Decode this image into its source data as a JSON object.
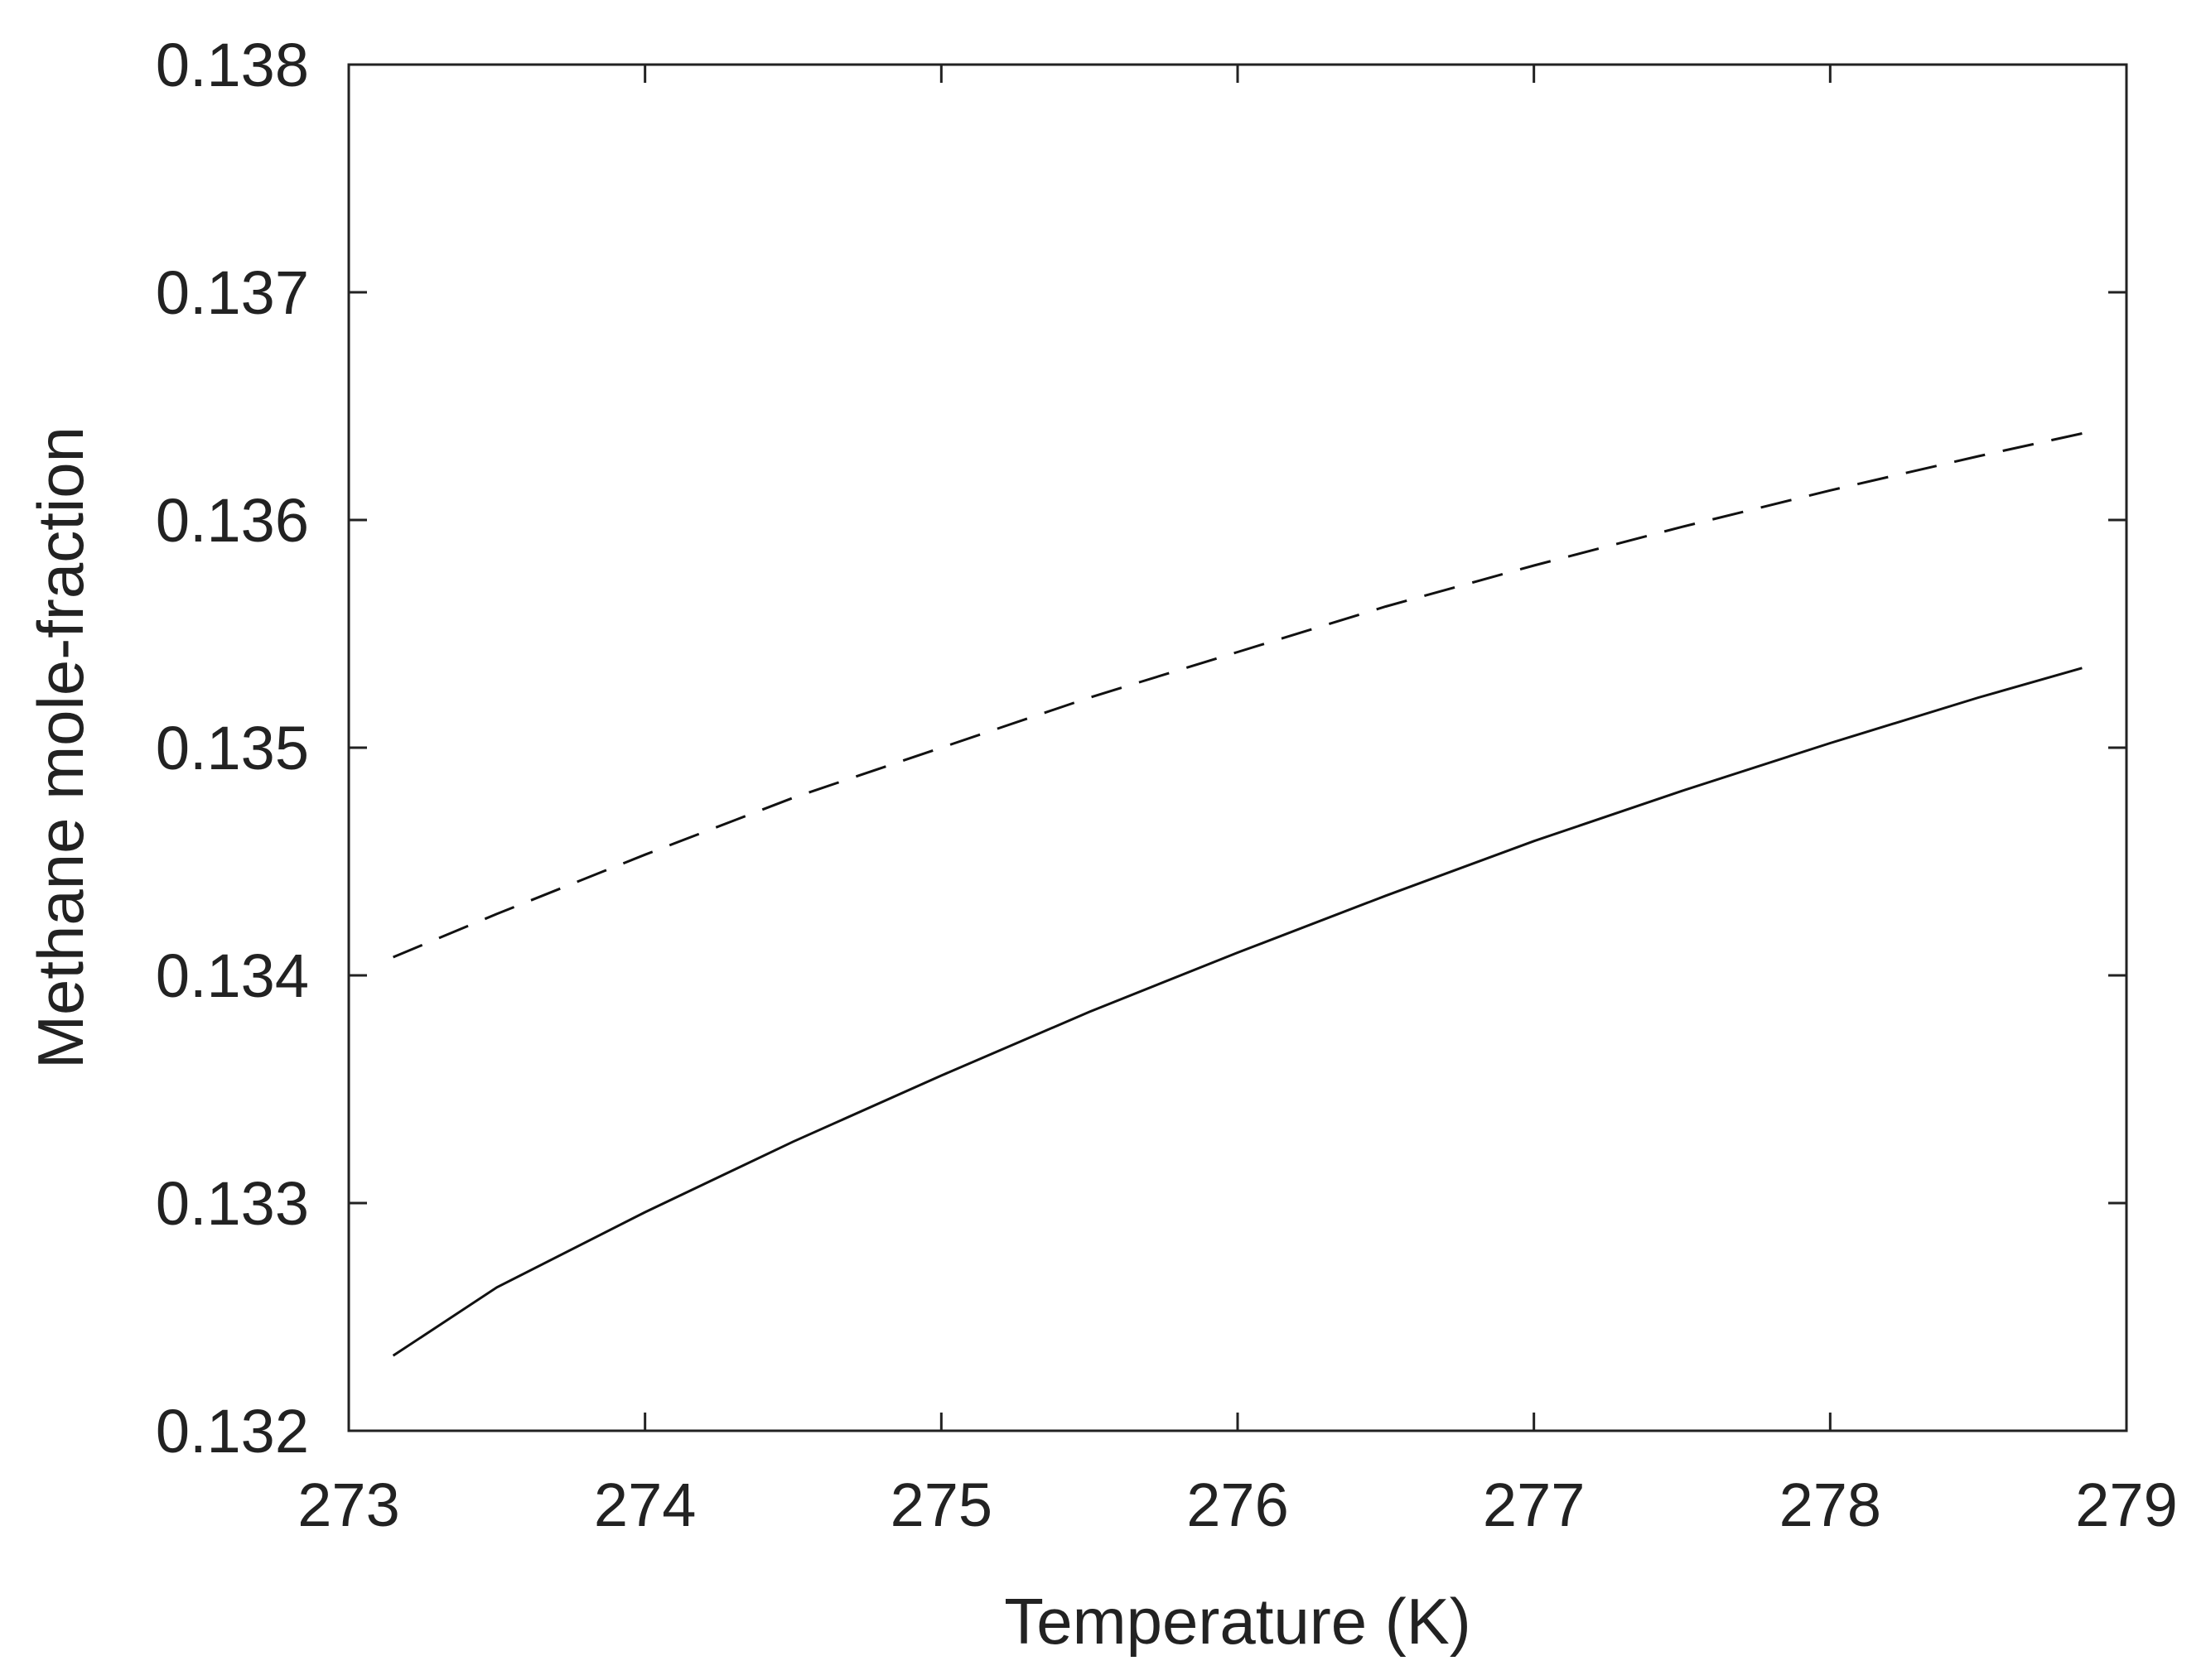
{
  "chart_data": {
    "type": "line",
    "title": "",
    "xlabel": "Temperature (K)",
    "ylabel": "Methane mole-fraction",
    "xlim": [
      273,
      279
    ],
    "ylim": [
      0.132,
      0.138
    ],
    "xticks": [
      "273",
      "274",
      "275",
      "276",
      "277",
      "278",
      "279"
    ],
    "yticks": [
      "0.132",
      "0.133",
      "0.134",
      "0.135",
      "0.136",
      "0.137",
      "0.138"
    ],
    "grid": false,
    "legend": "none",
    "series": [
      {
        "style": "solid",
        "color": "#111111",
        "x": [
          273.15,
          273.5,
          274.0,
          274.5,
          275.0,
          275.5,
          276.0,
          276.5,
          277.0,
          277.5,
          278.0,
          278.5,
          278.85
        ],
        "y": [
          0.13233,
          0.13263,
          0.13296,
          0.13327,
          0.13356,
          0.13384,
          0.1341,
          0.13435,
          0.13459,
          0.13481,
          0.13502,
          0.13522,
          0.13535
        ]
      },
      {
        "style": "dashed",
        "color": "#111111",
        "x": [
          273.15,
          273.5,
          274.0,
          274.5,
          275.0,
          275.5,
          276.0,
          276.5,
          277.0,
          277.5,
          278.0,
          278.5,
          278.85
        ],
        "y": [
          0.13408,
          0.13427,
          0.13453,
          0.13478,
          0.135,
          0.13522,
          0.13542,
          0.13562,
          0.1358,
          0.13597,
          0.13613,
          0.13628,
          0.13638
        ]
      }
    ]
  }
}
